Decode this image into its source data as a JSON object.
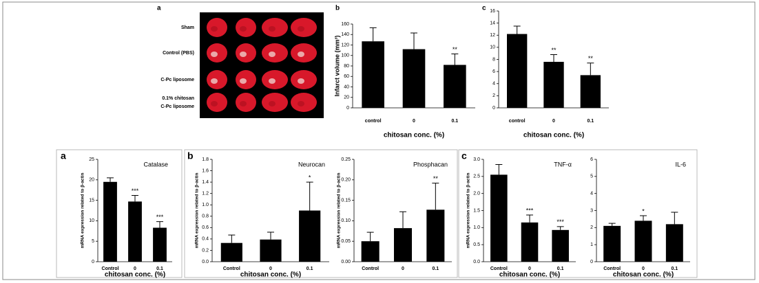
{
  "photo_panel": {
    "panel_label": "a",
    "rows": [
      [
        "Sham"
      ],
      [
        "Control (PBS)"
      ],
      [
        "C-Pc liposome"
      ],
      [
        "0.1% chitosan",
        "C-Pc liposome"
      ]
    ]
  },
  "chart_data": [
    {
      "type": "bar",
      "panel_label": "b",
      "y_label": "Infarct volume (mm³)",
      "x_label": "chitosan conc. (%)",
      "categories": [
        "control",
        "0",
        "0.1"
      ],
      "values": [
        127,
        112,
        82
      ],
      "errors": [
        26,
        31,
        21
      ],
      "annotations": [
        null,
        null,
        "**"
      ],
      "color": "#000000",
      "ylim": [
        0,
        160
      ],
      "yticks": [
        0,
        20,
        40,
        60,
        80,
        100,
        120,
        140,
        160
      ]
    },
    {
      "type": "bar",
      "panel_label": "c",
      "x_label": "chitosan conc. (%)",
      "categories": [
        "control",
        "0",
        "0.1"
      ],
      "values": [
        12.2,
        7.6,
        5.4
      ],
      "errors": [
        1.3,
        1.2,
        2.0
      ],
      "annotations": [
        null,
        "**",
        "**"
      ],
      "color": "#000000",
      "ylim": [
        0,
        16
      ],
      "yticks": [
        0,
        2,
        4,
        6,
        8,
        10,
        12,
        14,
        16
      ]
    },
    {
      "type": "bar",
      "panel_label": "a",
      "title": "Catalase",
      "y_label": "mRNA expression related to β-actin",
      "x_label": "chitosan conc. (%)",
      "categories": [
        "Control",
        "0",
        "0.1"
      ],
      "values": [
        19.5,
        14.7,
        8.3
      ],
      "errors": [
        1.0,
        1.5,
        1.5
      ],
      "annotations": [
        null,
        "***",
        "***"
      ],
      "color": "#000000",
      "ylim": [
        0,
        25
      ],
      "yticks": [
        0,
        5,
        10,
        15,
        20,
        25
      ]
    },
    {
      "type": "bar",
      "panel_label": "b",
      "title": "Neurocan",
      "y_label": "mRNA expression related to β-actin",
      "x_label": "chitosan conc. (%)",
      "categories": [
        "Control",
        "0",
        "0.1"
      ],
      "values": [
        0.33,
        0.39,
        0.9
      ],
      "errors": [
        0.14,
        0.13,
        0.5
      ],
      "annotations": [
        null,
        null,
        "*"
      ],
      "color": "#000000",
      "ylim": [
        0,
        1.8
      ],
      "yticks": [
        {
          "value": 0,
          "label": "0.0"
        },
        0.2,
        0.4,
        0.6,
        0.8,
        {
          "value": 1,
          "label": "1.0"
        },
        1.2,
        1.4,
        1.6,
        1.8
      ]
    },
    {
      "type": "bar",
      "title": "Phosphacan",
      "y_label": "mRNA expression related to β-actin",
      "categories": [
        "Control",
        "0",
        "0.1"
      ],
      "values": [
        0.05,
        0.082,
        0.127
      ],
      "errors": [
        0.022,
        0.04,
        0.065
      ],
      "annotations": [
        null,
        null,
        "**"
      ],
      "color": "#000000",
      "ylim": [
        0,
        0.25
      ],
      "yticks": [
        {
          "value": 0,
          "label": "0.00"
        },
        0.05,
        {
          "value": 0.1,
          "label": "0.10"
        },
        0.15,
        {
          "value": 0.2,
          "label": "0.20"
        },
        0.25
      ]
    },
    {
      "type": "bar",
      "panel_label": "c",
      "title": "TNF-α",
      "y_label": "mRNA expression related to β-actin",
      "x_label": "chitosan conc. (%)",
      "categories": [
        "Control",
        "0",
        "0.1"
      ],
      "values": [
        2.55,
        1.15,
        0.93
      ],
      "errors": [
        0.3,
        0.22,
        0.1
      ],
      "annotations": [
        null,
        "***",
        "***"
      ],
      "color": "#000000",
      "ylim": [
        0,
        3
      ],
      "yticks": [
        {
          "value": 0,
          "label": "0.0"
        },
        0.5,
        {
          "value": 1,
          "label": "1.0"
        },
        1.5,
        {
          "value": 2,
          "label": "2.0"
        },
        2.5,
        {
          "value": 3,
          "label": "3.0"
        }
      ]
    },
    {
      "type": "bar",
      "title": "IL-6",
      "x_label": "chitosan conc. (%)",
      "categories": [
        "Control",
        "0",
        "0.1"
      ],
      "values": [
        2.1,
        2.4,
        2.2
      ],
      "errors": [
        0.15,
        0.3,
        0.7
      ],
      "annotations": [
        null,
        "*",
        null
      ],
      "color": "#000000",
      "ylim": [
        0,
        6
      ],
      "yticks": [
        0,
        1,
        2,
        3,
        4,
        5,
        6
      ]
    }
  ]
}
